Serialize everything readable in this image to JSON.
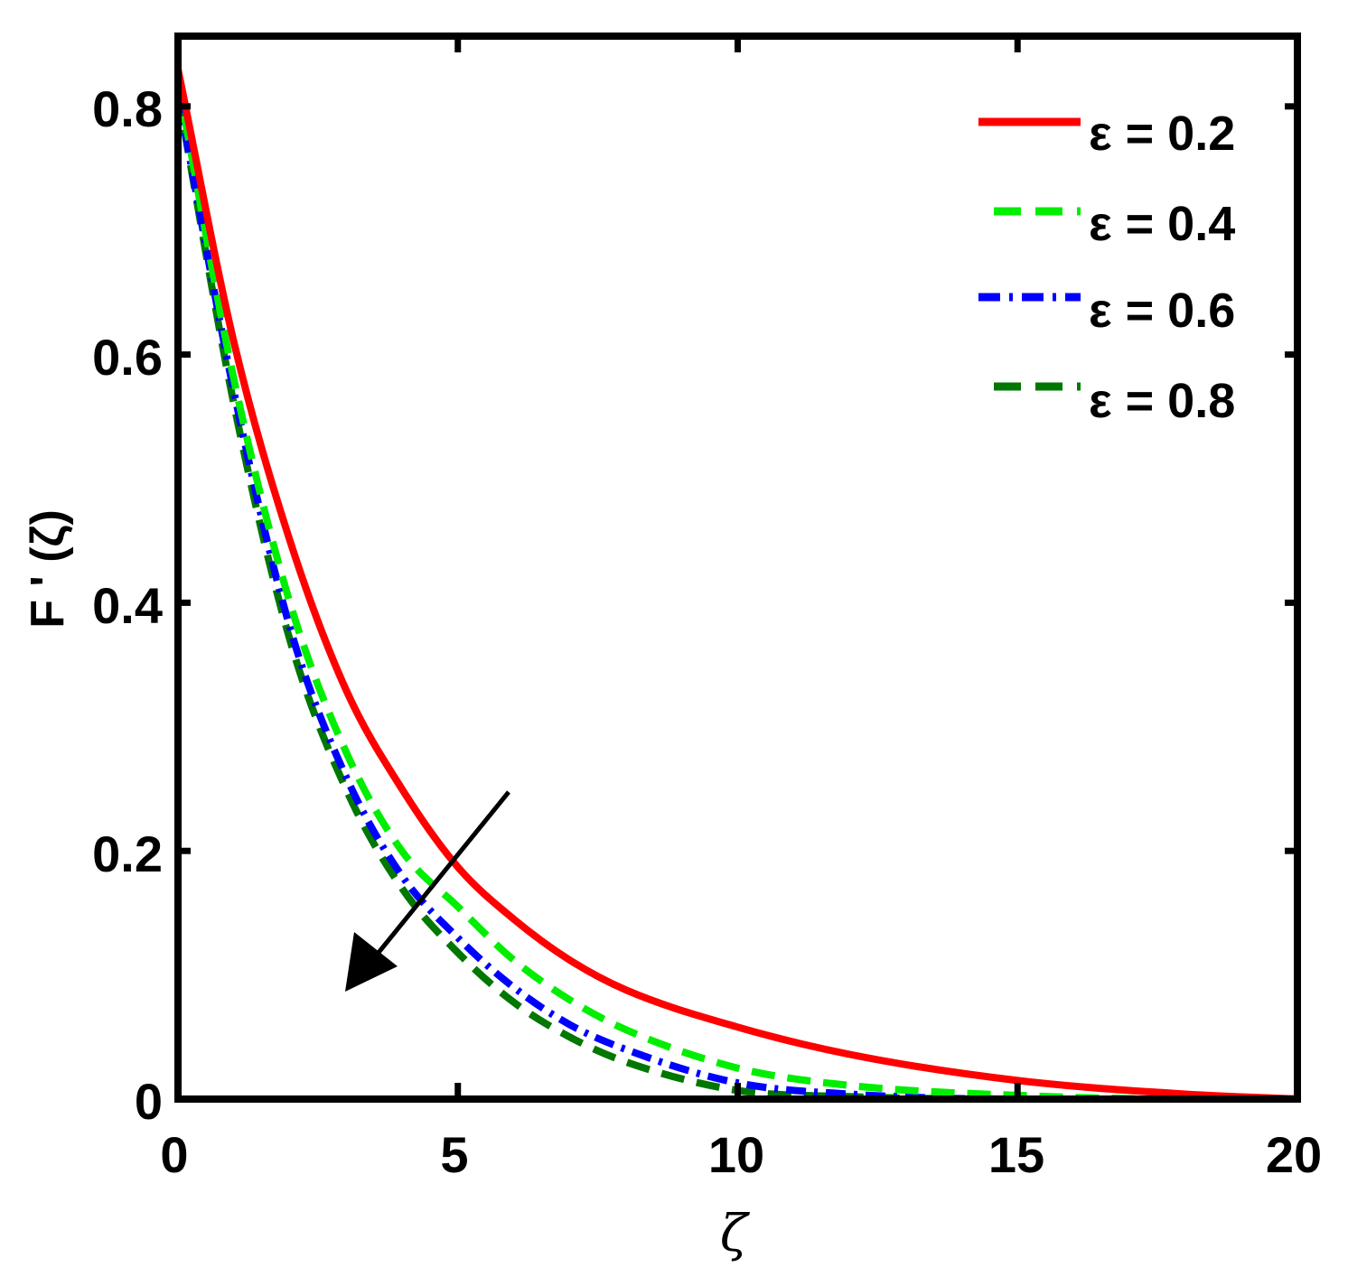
{
  "chart_data": {
    "type": "line",
    "title": "",
    "xlabel": "ζ",
    "ylabel": "F ' (ζ)",
    "xlim": [
      0,
      20
    ],
    "ylim": [
      0,
      0.857
    ],
    "xticks": [
      0,
      5,
      10,
      15,
      20
    ],
    "xtick_labels": [
      "0",
      "5",
      "10",
      "15",
      "20"
    ],
    "yticks": [
      0,
      0.2,
      0.4,
      0.6,
      0.8
    ],
    "ytick_labels": [
      "0",
      "0.2",
      "0.4",
      "0.6",
      "0.8"
    ],
    "grid": false,
    "legend_position": "upper right",
    "annotation": "arrow pointing down-left indicating decrease of F'(ζ) with increasing ε",
    "x": [
      0,
      1,
      2,
      3,
      4,
      5,
      6,
      7,
      8,
      10,
      12,
      15,
      18,
      20
    ],
    "series": [
      {
        "name": "ε = 0.2",
        "color": "#ff0000",
        "style": "solid",
        "values": [
          0.83,
          0.61,
          0.45,
          0.33,
          0.25,
          0.187,
          0.145,
          0.112,
          0.088,
          0.058,
          0.036,
          0.015,
          0.004,
          0.0
        ]
      },
      {
        "name": "ε = 0.4",
        "color": "#00ee00",
        "style": "dashed",
        "values": [
          0.82,
          0.58,
          0.4,
          0.28,
          0.2,
          0.155,
          0.112,
          0.08,
          0.056,
          0.025,
          0.011,
          0.003,
          0.0,
          0.0
        ]
      },
      {
        "name": "ε = 0.6",
        "color": "#0000ff",
        "style": "dash-dot",
        "values": [
          0.81,
          0.57,
          0.38,
          0.26,
          0.18,
          0.13,
          0.09,
          0.06,
          0.04,
          0.013,
          0.004,
          0.0,
          0.0,
          0.0
        ]
      },
      {
        "name": "ε = 0.8",
        "color": "#007700",
        "style": "dashed",
        "values": [
          0.81,
          0.56,
          0.37,
          0.25,
          0.17,
          0.118,
          0.078,
          0.05,
          0.03,
          0.007,
          0.002,
          0.0,
          0.0,
          0.0
        ]
      }
    ]
  },
  "legend": {
    "items": [
      {
        "label": "ε = 0.2",
        "color": "#ff0000"
      },
      {
        "label": "ε = 0.4",
        "color": "#00ee00"
      },
      {
        "label": "ε = 0.6",
        "color": "#0000ff"
      },
      {
        "label": "ε = 0.8",
        "color": "#007700"
      }
    ]
  },
  "axes": {
    "xlabel": "ζ",
    "ylabel": "F ' (ζ)",
    "xticks": [
      "0",
      "5",
      "10",
      "15",
      "20"
    ],
    "yticks": [
      "0",
      "0.2",
      "0.4",
      "0.6",
      "0.8"
    ]
  }
}
